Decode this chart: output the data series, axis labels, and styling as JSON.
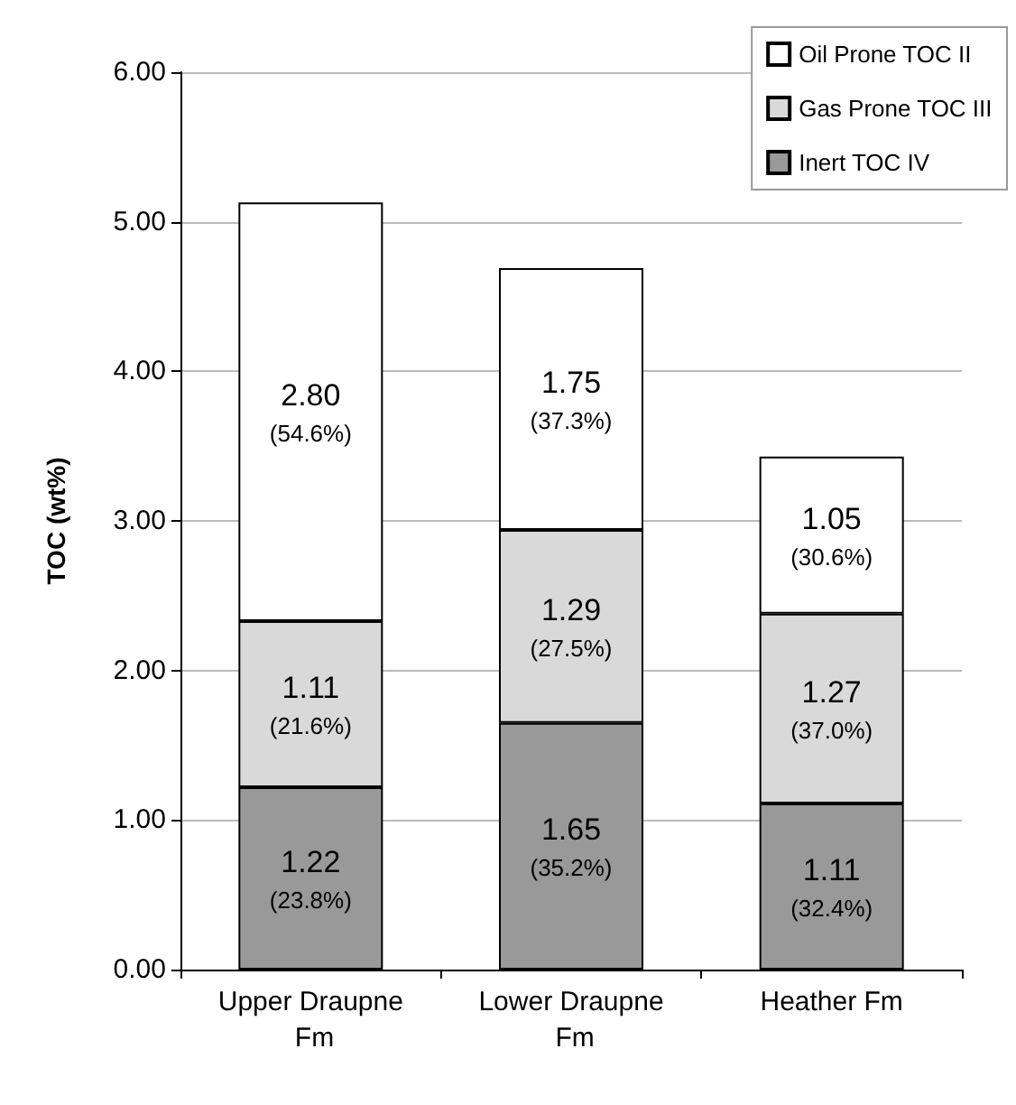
{
  "chart_data": {
    "type": "bar",
    "stacked": true,
    "ylabel": "TOC (wt%)",
    "categories": [
      "Upper Draupne Fm",
      "Lower Draupne Fm",
      "Heather Fm"
    ],
    "series": [
      {
        "name": "Inert TOC IV",
        "color": "#999999",
        "values": [
          1.22,
          1.65,
          1.11
        ],
        "value_labels": [
          "1.22\n(23.8%)",
          "1.65\n(35.2%)",
          "1.11\n(32.4%)"
        ]
      },
      {
        "name": "Gas Prone TOC III",
        "color": "#d9d9d9",
        "values": [
          1.11,
          1.29,
          1.27
        ],
        "value_labels": [
          "1.11\n(21.6%)",
          "1.29\n(27.5%)",
          "1.27\n(37.0%)"
        ]
      },
      {
        "name": "Oil Prone TOC II",
        "color": "#ffffff",
        "values": [
          2.8,
          1.75,
          1.05
        ],
        "value_labels": [
          "2.80\n(54.6%)",
          "1.75\n(37.3%)",
          "1.05\n(30.6%)"
        ]
      }
    ],
    "ylim": [
      0,
      6
    ],
    "yticks": [
      {
        "value": 0,
        "label": "0.00"
      },
      {
        "value": 1,
        "label": "1.00"
      },
      {
        "value": 2,
        "label": "2.00"
      },
      {
        "value": 3,
        "label": "3.00"
      },
      {
        "value": 4,
        "label": "4.00"
      },
      {
        "value": 5,
        "label": "5.00"
      },
      {
        "value": 6,
        "label": "6.00"
      }
    ],
    "grid": "y",
    "legend": "top right"
  }
}
